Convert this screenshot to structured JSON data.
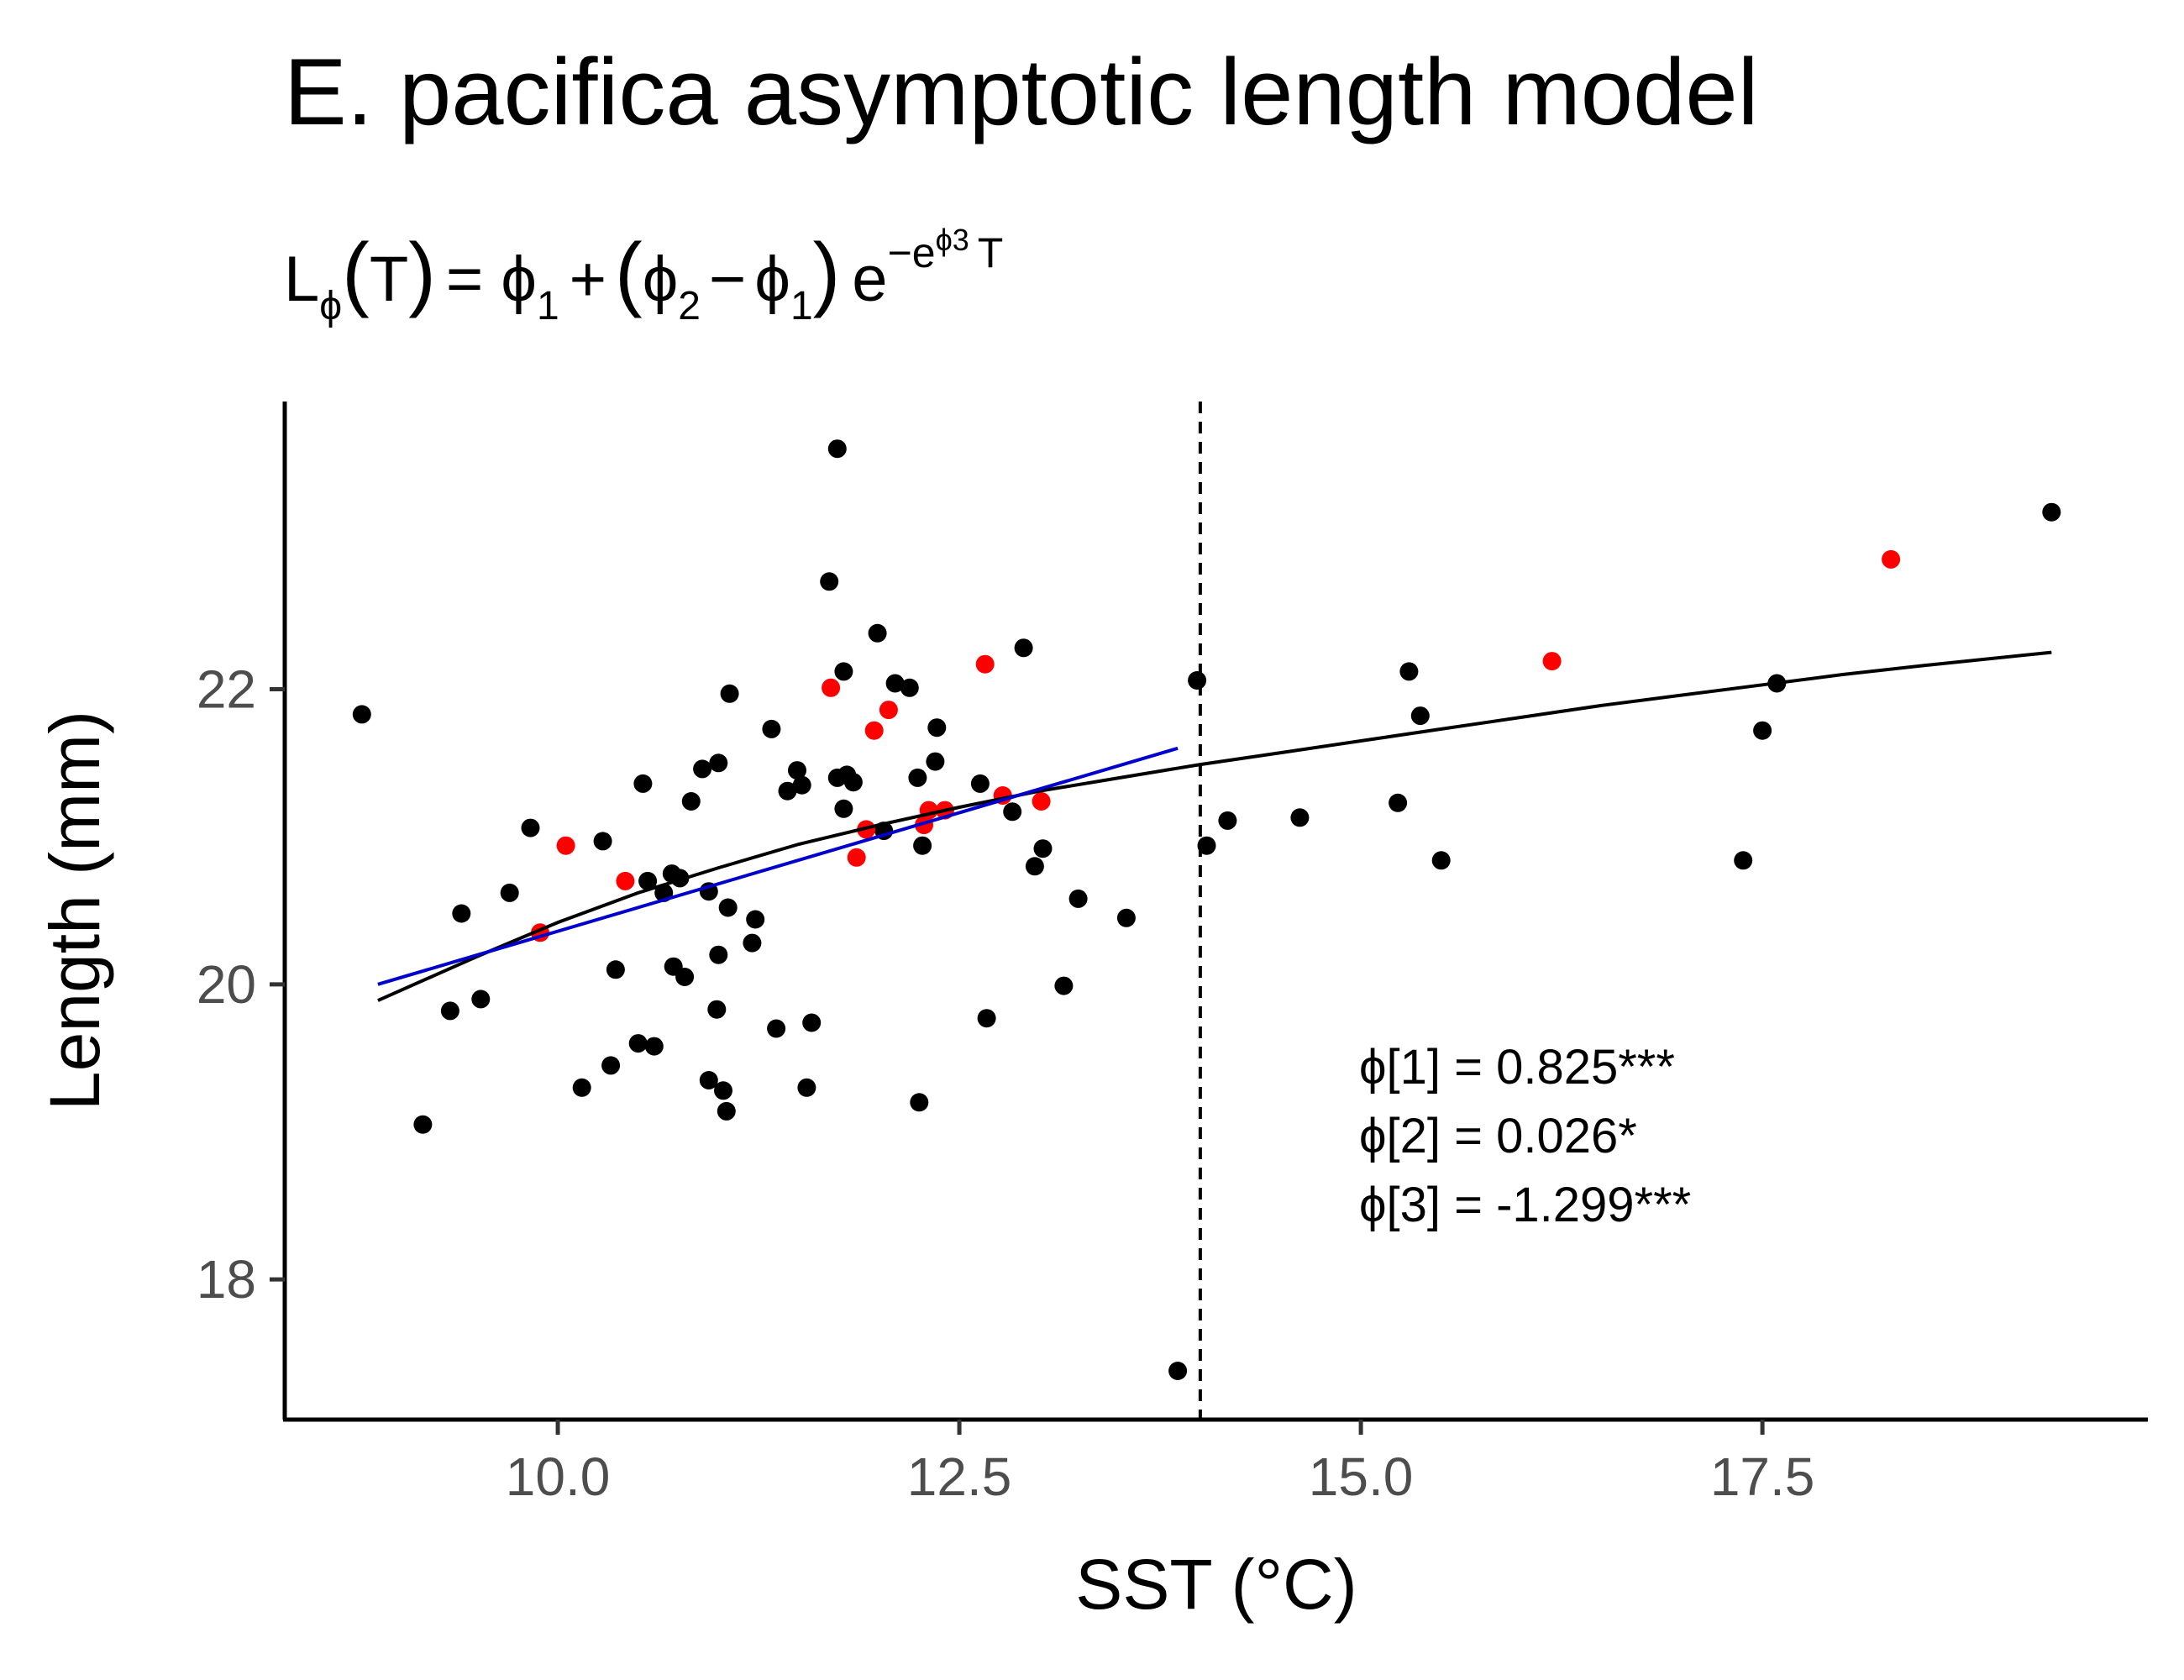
{
  "chart_data": {
    "type": "scatter",
    "title": "E. pacifica asymptotic length model",
    "subtitle": {
      "lhs": "L",
      "lhs_sub": "ϕ",
      "lhs_arg": "T",
      "rhs_a": "= ϕ",
      "rhs_a_sub": "1",
      "plus": "+",
      "phi2": "ϕ",
      "phi2_sub": "2",
      "minus": "−",
      "phi1b": "ϕ",
      "phi1b_sub": "1",
      "e": "e",
      "exp_lead": "−e",
      "exp_sup": "ϕ3",
      "exp_tail": "T"
    },
    "xlabel": "SST (°C)",
    "ylabel": "Length (mm)",
    "xlim": [
      8.3,
      19.9
    ],
    "ylim": [
      17.05,
      23.95
    ],
    "x_ticks": [
      10.0,
      12.5,
      15.0,
      17.5
    ],
    "x_tick_labels": [
      "10.0",
      "12.5",
      "15.0",
      "17.5"
    ],
    "y_ticks": [
      18,
      20,
      22
    ],
    "y_tick_labels": [
      "18",
      "20",
      "22"
    ],
    "grid": false,
    "vline": {
      "x": 14.0,
      "style": "dashed",
      "color": "#000000"
    },
    "series": [
      {
        "color": "#000000",
        "points": [
          [
            8.78,
            21.83
          ],
          [
            9.16,
            19.05
          ],
          [
            9.33,
            19.82
          ],
          [
            9.4,
            20.48
          ],
          [
            9.52,
            19.9
          ],
          [
            9.7,
            20.62
          ],
          [
            9.83,
            21.06
          ],
          [
            10.15,
            19.3
          ],
          [
            10.28,
            20.97
          ],
          [
            10.33,
            19.45
          ],
          [
            10.36,
            20.1
          ],
          [
            10.5,
            19.6
          ],
          [
            10.53,
            21.36
          ],
          [
            10.56,
            20.7
          ],
          [
            10.6,
            19.58
          ],
          [
            10.66,
            20.62
          ],
          [
            10.71,
            20.75
          ],
          [
            10.72,
            20.12
          ],
          [
            10.76,
            20.72
          ],
          [
            10.79,
            20.05
          ],
          [
            10.83,
            21.24
          ],
          [
            10.9,
            21.46
          ],
          [
            10.94,
            19.35
          ],
          [
            10.94,
            20.63
          ],
          [
            10.99,
            19.83
          ],
          [
            11.0,
            21.5
          ],
          [
            11.0,
            20.2
          ],
          [
            11.03,
            19.28
          ],
          [
            11.05,
            19.14
          ],
          [
            11.06,
            20.52
          ],
          [
            11.07,
            21.97
          ],
          [
            11.21,
            20.28
          ],
          [
            11.23,
            20.44
          ],
          [
            11.33,
            21.73
          ],
          [
            11.36,
            19.7
          ],
          [
            11.43,
            21.31
          ],
          [
            11.49,
            21.45
          ],
          [
            11.52,
            21.35
          ],
          [
            11.55,
            19.3
          ],
          [
            11.58,
            19.74
          ],
          [
            11.69,
            22.73
          ],
          [
            11.74,
            21.4
          ],
          [
            11.74,
            23.63
          ],
          [
            11.78,
            22.12
          ],
          [
            11.78,
            21.19
          ],
          [
            11.8,
            21.42
          ],
          [
            11.84,
            21.37
          ],
          [
            11.99,
            22.38
          ],
          [
            12.03,
            21.04
          ],
          [
            12.1,
            22.04
          ],
          [
            12.19,
            22.01
          ],
          [
            12.24,
            21.4
          ],
          [
            12.25,
            19.2
          ],
          [
            12.27,
            20.94
          ],
          [
            12.35,
            21.51
          ],
          [
            12.36,
            21.74
          ],
          [
            12.63,
            21.36
          ],
          [
            12.67,
            19.77
          ],
          [
            12.83,
            21.17
          ],
          [
            12.9,
            22.28
          ],
          [
            12.97,
            20.8
          ],
          [
            13.02,
            20.92
          ],
          [
            13.15,
            19.99
          ],
          [
            13.24,
            20.58
          ],
          [
            13.54,
            20.45
          ],
          [
            13.86,
            17.38
          ],
          [
            13.98,
            22.06
          ],
          [
            14.04,
            20.94
          ],
          [
            14.17,
            21.11
          ],
          [
            14.62,
            21.13
          ],
          [
            15.23,
            21.23
          ],
          [
            15.3,
            22.12
          ],
          [
            15.37,
            21.82
          ],
          [
            15.5,
            20.84
          ],
          [
            17.38,
            20.84
          ],
          [
            17.5,
            21.72
          ],
          [
            17.59,
            22.04
          ],
          [
            19.3,
            23.2
          ]
        ]
      },
      {
        "color": "#ff0000",
        "points": [
          [
            9.89,
            20.35
          ],
          [
            10.05,
            20.94
          ],
          [
            10.42,
            20.7
          ],
          [
            11.7,
            22.01
          ],
          [
            11.86,
            20.86
          ],
          [
            11.92,
            21.05
          ],
          [
            11.97,
            21.72
          ],
          [
            12.06,
            21.86
          ],
          [
            12.28,
            21.08
          ],
          [
            12.31,
            21.18
          ],
          [
            12.41,
            21.18
          ],
          [
            12.66,
            22.17
          ],
          [
            12.77,
            21.28
          ],
          [
            13.01,
            21.24
          ],
          [
            16.19,
            22.19
          ],
          [
            18.3,
            22.88
          ]
        ]
      }
    ],
    "fit_lines": [
      {
        "color": "#000000",
        "points": [
          [
            8.88,
            19.89
          ],
          [
            9.5,
            20.19
          ],
          [
            10.0,
            20.42
          ],
          [
            10.5,
            20.62
          ],
          [
            11.0,
            20.79
          ],
          [
            11.5,
            20.95
          ],
          [
            12.0,
            21.08
          ],
          [
            12.5,
            21.2
          ],
          [
            13.0,
            21.31
          ],
          [
            13.5,
            21.4
          ],
          [
            14.0,
            21.49
          ],
          [
            14.5,
            21.57
          ],
          [
            15.0,
            21.65
          ],
          [
            15.5,
            21.73
          ],
          [
            16.0,
            21.81
          ],
          [
            16.5,
            21.89
          ],
          [
            17.0,
            21.96
          ],
          [
            17.5,
            22.03
          ],
          [
            18.0,
            22.1
          ],
          [
            18.5,
            22.16
          ],
          [
            19.3,
            22.25
          ]
        ]
      },
      {
        "color": "#0000cc",
        "points": [
          [
            8.88,
            20.0
          ],
          [
            13.86,
            21.6
          ]
        ]
      }
    ],
    "annotations": [
      "ϕ[1] = 0.825***",
      "ϕ[2] = 0.026*",
      "ϕ[3] = -1.299***"
    ]
  }
}
